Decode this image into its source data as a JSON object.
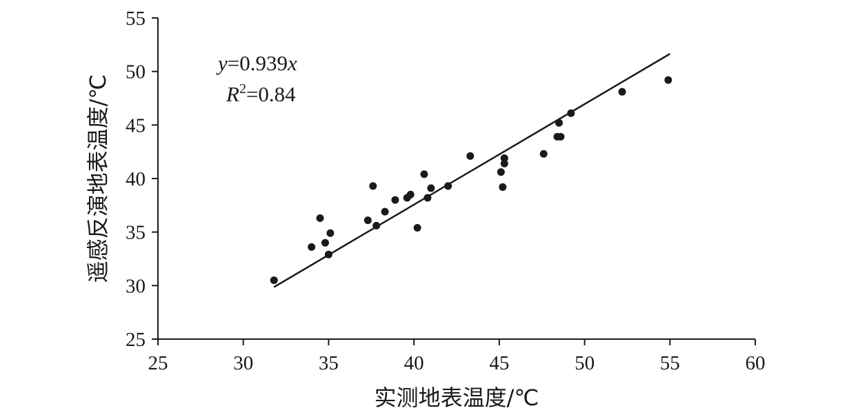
{
  "chart_data": {
    "type": "scatter",
    "title": "",
    "xlabel": "实测地表温度/℃",
    "ylabel": "遥感反演地表温度/℃",
    "xlim": [
      25,
      60
    ],
    "ylim": [
      25,
      55
    ],
    "xticks": [
      25,
      30,
      35,
      40,
      45,
      50,
      55,
      60
    ],
    "yticks": [
      25,
      30,
      35,
      40,
      45,
      50,
      55
    ],
    "grid": false,
    "legend": "none",
    "annotations": {
      "equation_y": "y",
      "equation_eq": "=0.939",
      "equation_x": "x",
      "r2_r": "R",
      "r2_sup": "2",
      "r2_val": "=0.84"
    },
    "fit": {
      "slope": 0.939,
      "x_range": [
        31.8,
        55
      ]
    },
    "points": [
      {
        "x": 31.8,
        "y": 30.5
      },
      {
        "x": 34.0,
        "y": 33.6
      },
      {
        "x": 34.5,
        "y": 36.3
      },
      {
        "x": 34.8,
        "y": 34.0
      },
      {
        "x": 35.0,
        "y": 32.9
      },
      {
        "x": 35.1,
        "y": 34.9
      },
      {
        "x": 37.3,
        "y": 36.1
      },
      {
        "x": 37.6,
        "y": 39.3
      },
      {
        "x": 37.8,
        "y": 35.6
      },
      {
        "x": 38.3,
        "y": 36.9
      },
      {
        "x": 38.9,
        "y": 38.0
      },
      {
        "x": 39.6,
        "y": 38.2
      },
      {
        "x": 39.8,
        "y": 38.5
      },
      {
        "x": 40.2,
        "y": 35.4
      },
      {
        "x": 40.6,
        "y": 40.4
      },
      {
        "x": 40.8,
        "y": 38.2
      },
      {
        "x": 41.0,
        "y": 39.1
      },
      {
        "x": 42.0,
        "y": 39.3
      },
      {
        "x": 43.3,
        "y": 42.1
      },
      {
        "x": 45.1,
        "y": 40.6
      },
      {
        "x": 45.2,
        "y": 39.2
      },
      {
        "x": 45.3,
        "y": 41.4
      },
      {
        "x": 45.3,
        "y": 41.9
      },
      {
        "x": 47.6,
        "y": 42.3
      },
      {
        "x": 48.4,
        "y": 43.9
      },
      {
        "x": 48.5,
        "y": 45.2
      },
      {
        "x": 48.6,
        "y": 43.9
      },
      {
        "x": 49.2,
        "y": 46.1
      },
      {
        "x": 52.2,
        "y": 48.1
      },
      {
        "x": 54.9,
        "y": 49.2
      }
    ]
  }
}
